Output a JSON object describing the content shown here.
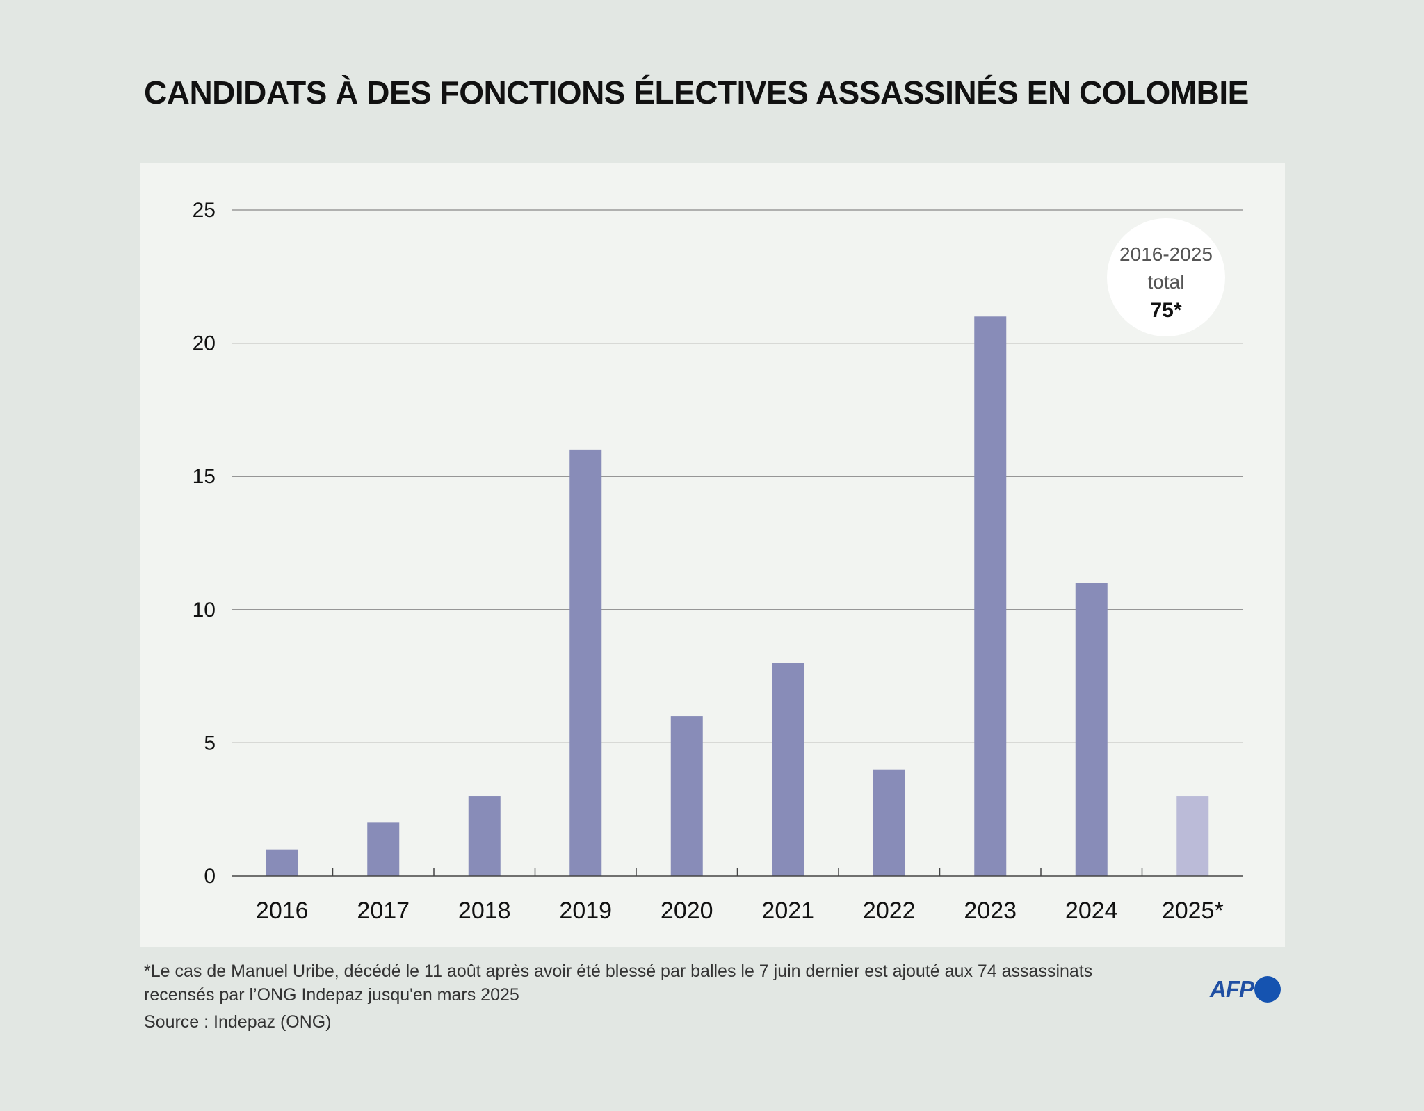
{
  "title": "CANDIDATS À DES FONCTIONS ÉLECTIVES ASSASSINÉS EN COLOMBIE",
  "colors": {
    "bar": "#888cb8",
    "bar_partial": "#bbbbd8",
    "grid": "#888888",
    "background": "#e2e7e3",
    "panel": "#f2f4f1",
    "logo": "#1553b0"
  },
  "chart_data": {
    "type": "bar",
    "categories": [
      "2016",
      "2017",
      "2018",
      "2019",
      "2020",
      "2021",
      "2022",
      "2023",
      "2024",
      "2025*"
    ],
    "values": [
      1,
      2,
      3,
      16,
      6,
      8,
      4,
      21,
      11,
      3
    ],
    "partial_category": "2025*",
    "title": "CANDIDATS À DES FONCTIONS ÉLECTIVES ASSASSINÉS EN COLOMBIE",
    "xlabel": "",
    "ylabel": "",
    "ylim": [
      0,
      25
    ],
    "yticks": [
      0,
      5,
      10,
      15,
      20,
      25
    ],
    "grid": true,
    "legend": "none"
  },
  "total": {
    "line1": "2016-2025",
    "line2": "total",
    "value": "75*"
  },
  "notes": {
    "footnote_line1": "*Le cas de Manuel Uribe, décédé le 11 août après avoir été blessé par balles le 7 juin dernier est ajouté aux 74 assassinats",
    "footnote_line2": "recensés par l’ONG Indepaz jusqu'en mars 2025",
    "source": "Source : Indepaz (ONG)"
  },
  "logo": {
    "text": "AFP",
    "icon": "afp-dot-icon"
  }
}
